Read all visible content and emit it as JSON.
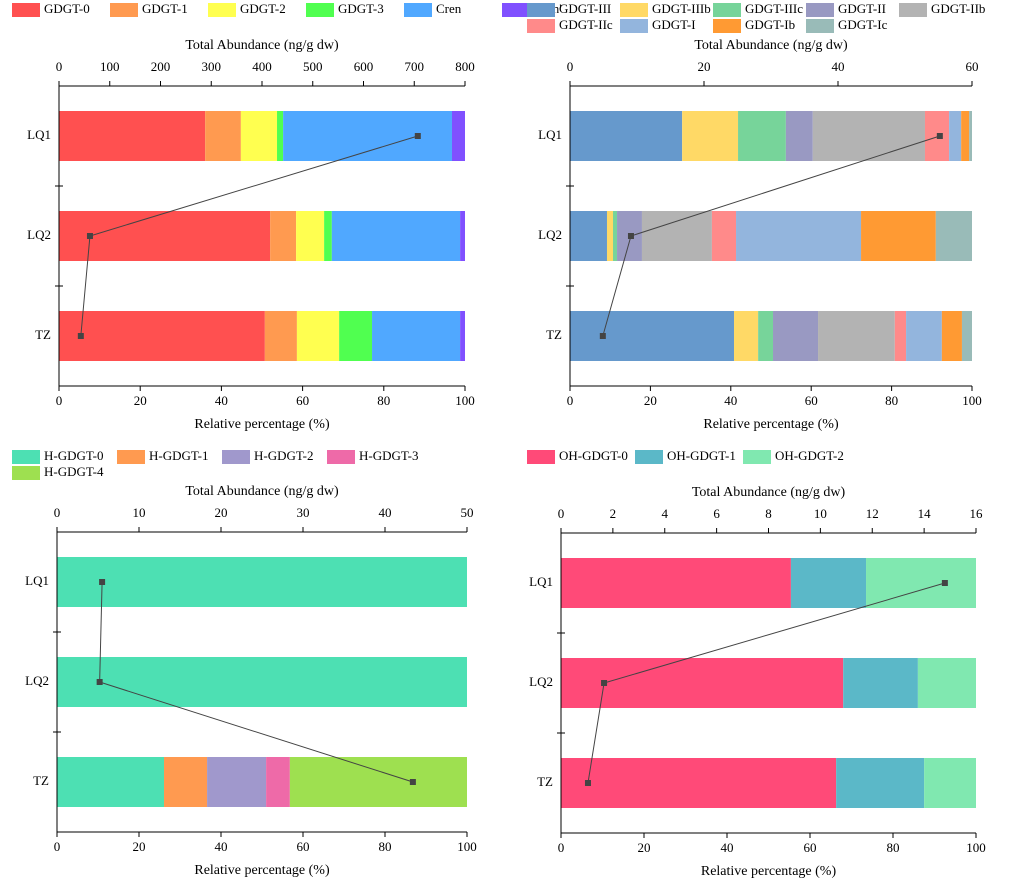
{
  "chart_data": [
    {
      "type": "bar",
      "stacked": true,
      "orientation": "horizontal",
      "categories": [
        "LQ1",
        "LQ2",
        "TZ"
      ],
      "xlabel": "Relative percentage (%)",
      "xlim": [
        0,
        100
      ],
      "xticks": [
        0,
        20,
        40,
        60,
        80,
        100
      ],
      "x2label": "Total Abundance (ng/g dw)",
      "x2lim": [
        0,
        800
      ],
      "x2ticks": [
        0,
        100,
        200,
        300,
        400,
        500,
        600,
        700,
        800
      ],
      "series": [
        {
          "name": "GDGT-0",
          "color": "#ff5050",
          "values": [
            36.0,
            52.0,
            50.7
          ]
        },
        {
          "name": "GDGT-1",
          "color": "#ff9a50",
          "values": [
            8.8,
            6.4,
            7.9
          ]
        },
        {
          "name": "GDGT-2",
          "color": "#ffff50",
          "values": [
            8.9,
            6.9,
            10.4
          ]
        },
        {
          "name": "GDGT-3",
          "color": "#50ff50",
          "values": [
            1.5,
            1.9,
            8.1
          ]
        },
        {
          "name": "Cren",
          "color": "#50a8ff",
          "values": [
            41.6,
            31.6,
            21.7
          ]
        },
        {
          "name": "Cren'",
          "color": "#8050ff",
          "values": [
            3.2,
            1.2,
            1.2
          ]
        }
      ],
      "total_abundance": {
        "color": "#444444",
        "values": [
          707,
          61,
          43
        ]
      }
    },
    {
      "type": "bar",
      "stacked": true,
      "orientation": "horizontal",
      "categories": [
        "LQ1",
        "LQ2",
        "TZ"
      ],
      "xlabel": "Relative percentage (%)",
      "xlim": [
        0,
        100
      ],
      "xticks": [
        0,
        20,
        40,
        60,
        80,
        100
      ],
      "x2label": "Total Abundance (ng/g dw)",
      "x2lim": [
        0,
        60
      ],
      "x2ticks": [
        0,
        20,
        40,
        60
      ],
      "series": [
        {
          "name": "GDGT-III",
          "color": "#6699cc",
          "values": [
            27.9,
            9.2,
            40.8
          ]
        },
        {
          "name": "GDGT-IIIb",
          "color": "#ffd966",
          "values": [
            13.9,
            1.5,
            6.0
          ]
        },
        {
          "name": "GDGT-IIIc",
          "color": "#77d49a",
          "values": [
            11.9,
            1.0,
            3.7
          ]
        },
        {
          "name": "GDGT-II",
          "color": "#9999c2",
          "values": [
            6.7,
            6.2,
            11.2
          ]
        },
        {
          "name": "GDGT-IIb",
          "color": "#b3b3b3",
          "values": [
            27.9,
            17.4,
            19.1
          ]
        },
        {
          "name": "GDGT-IIc",
          "color": "#ff8a8a",
          "values": [
            6.0,
            6.0,
            2.8
          ]
        },
        {
          "name": "GDGT-I",
          "color": "#93b5dd",
          "values": [
            3.0,
            31.1,
            8.9
          ]
        },
        {
          "name": "GDGT-Ib",
          "color": "#ff9a33",
          "values": [
            2.0,
            18.6,
            5.0
          ]
        },
        {
          "name": "GDGT-Ic",
          "color": "#99bbb8",
          "values": [
            0.7,
            9.0,
            2.5
          ]
        }
      ],
      "total_abundance": {
        "color": "#444444",
        "values": [
          55.2,
          9.1,
          4.9
        ]
      }
    },
    {
      "type": "bar",
      "stacked": true,
      "orientation": "horizontal",
      "categories": [
        "LQ1",
        "LQ2",
        "TZ"
      ],
      "xlabel": "Relative percentage (%)",
      "xlim": [
        0,
        100
      ],
      "xticks": [
        0,
        20,
        40,
        60,
        80,
        100
      ],
      "x2label": "Total Abundance (ng/g dw)",
      "x2lim": [
        0,
        50
      ],
      "x2ticks": [
        0,
        10,
        20,
        30,
        40,
        50
      ],
      "series": [
        {
          "name": "H-GDGT-0",
          "color": "#4de0b3",
          "values": [
            100,
            100,
            26.1
          ]
        },
        {
          "name": "H-GDGT-1",
          "color": "#ff9a50",
          "values": [
            0,
            0,
            10.5
          ]
        },
        {
          "name": "H-GDGT-2",
          "color": "#a098cc",
          "values": [
            0,
            0,
            14.4
          ]
        },
        {
          "name": "H-GDGT-3",
          "color": "#ee6aa8",
          "values": [
            0,
            0,
            5.8
          ]
        },
        {
          "name": "H-GDGT-4",
          "color": "#9ee050",
          "values": [
            0,
            0,
            43.2
          ]
        }
      ],
      "total_abundance": {
        "color": "#444444",
        "values": [
          5.5,
          5.2,
          43.4
        ]
      }
    },
    {
      "type": "bar",
      "stacked": true,
      "orientation": "horizontal",
      "categories": [
        "LQ1",
        "LQ2",
        "TZ"
      ],
      "xlabel": "Relative percentage (%)",
      "xlim": [
        0,
        100
      ],
      "xticks": [
        0,
        20,
        40,
        60,
        80,
        100
      ],
      "x2label": "Total Abundance (ng/g dw)",
      "x2lim": [
        0,
        16
      ],
      "x2ticks": [
        0,
        2,
        4,
        6,
        8,
        10,
        12,
        14,
        16
      ],
      "series": [
        {
          "name": "OH-GDGT-0",
          "color": "#ff4a78",
          "values": [
            55.4,
            68.0,
            66.3
          ]
        },
        {
          "name": "OH-GDGT-1",
          "color": "#5bb8c8",
          "values": [
            18.1,
            18.0,
            21.2
          ]
        },
        {
          "name": "OH-GDGT-2",
          "color": "#80e8b0",
          "values": [
            26.5,
            14.0,
            12.5
          ]
        }
      ],
      "total_abundance": {
        "color": "#444444",
        "values": [
          14.8,
          1.66,
          1.04
        ]
      }
    }
  ]
}
